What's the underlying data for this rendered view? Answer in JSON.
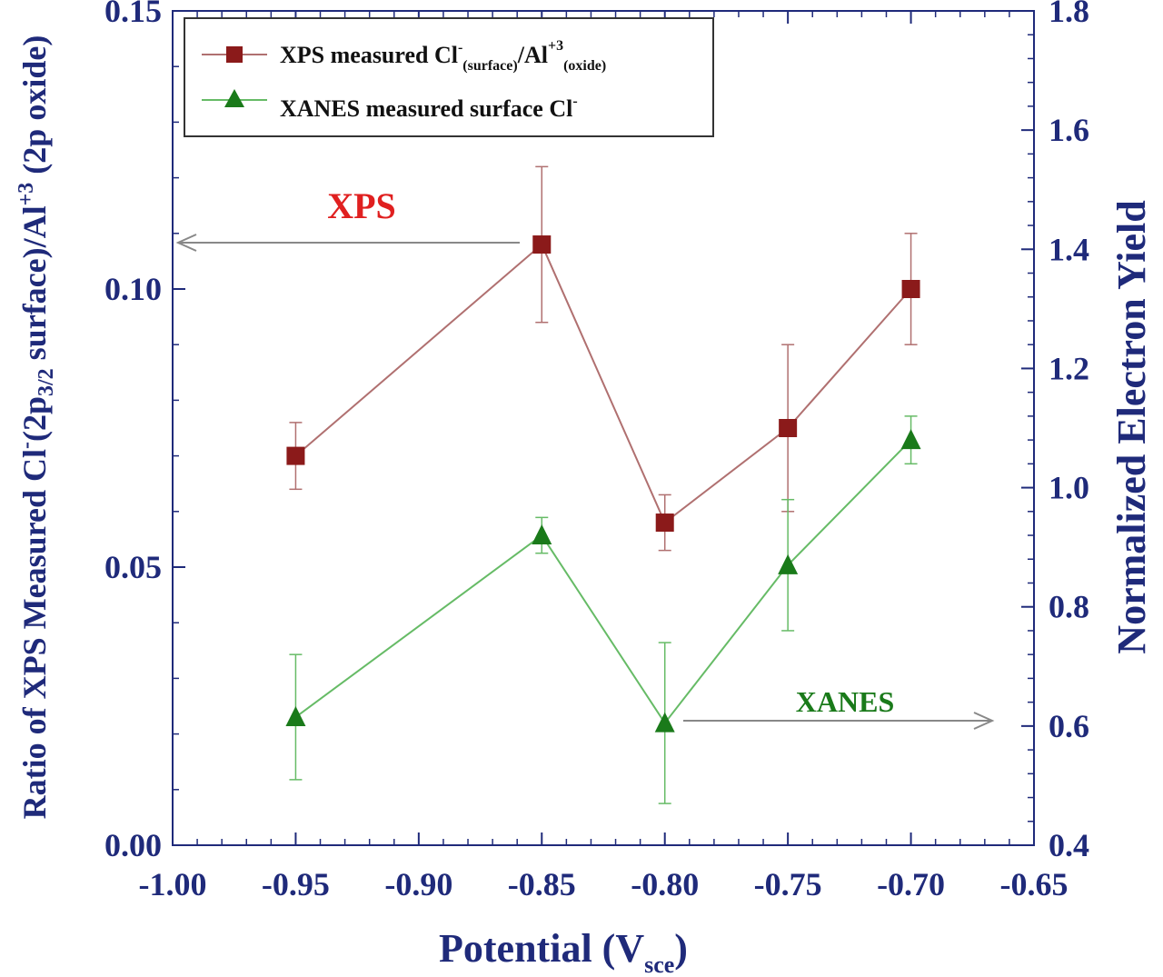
{
  "chart_data": {
    "type": "line",
    "x": [
      -0.95,
      -0.85,
      -0.8,
      -0.75,
      -0.7
    ],
    "xlim": [
      -1.0,
      -0.65
    ],
    "xticks": [
      -1.0,
      -0.95,
      -0.9,
      -0.85,
      -0.8,
      -0.75,
      -0.7,
      -0.65
    ],
    "xtick_labels": [
      "-1.00",
      "-0.95",
      "-0.90",
      "-0.85",
      "-0.80",
      "-0.75",
      "-0.70",
      "-0.65"
    ],
    "ylim_left": [
      0.0,
      0.15
    ],
    "yticks_left": [
      0.0,
      0.05,
      0.1,
      0.15
    ],
    "ytick_labels_left": [
      "0.00",
      "0.05",
      "0.10",
      "0.15"
    ],
    "ylim_right": [
      0.4,
      1.8
    ],
    "yticks_right": [
      0.4,
      0.6,
      0.8,
      1.0,
      1.2,
      1.4,
      1.6,
      1.8
    ],
    "ytick_labels_right": [
      "0.4",
      "0.6",
      "0.8",
      "1.0",
      "1.2",
      "1.4",
      "1.6",
      "1.8"
    ],
    "xlabel": {
      "main": "Potential (V",
      "sub": "sce",
      "close": ")"
    },
    "ylabel_left": {
      "p1": "Ratio of XPS Measured Cl",
      "sup1": "-",
      "p2": "(2p",
      "sub1": "3/2",
      "p3": " surface)/Al",
      "sup2": "+3",
      "p4": " (2p oxide)"
    },
    "ylabel_right": "Normalized Electron Yield",
    "series": [
      {
        "name": "XPS measured Cl-(surface)/Al+3(oxide)",
        "legend": {
          "t1": "XPS measured Cl",
          "sup1": "-",
          "sub1": "(surface)",
          "t2": "/Al",
          "sup2": "+3",
          "sub2": "(oxide)"
        },
        "axis": "left",
        "marker": "square",
        "color": "#8b1a1a",
        "line_color": "#b07070",
        "values": [
          0.07,
          0.108,
          0.058,
          0.075,
          0.1
        ],
        "err_low": [
          0.064,
          0.094,
          0.053,
          0.06,
          0.09
        ],
        "err_high": [
          0.076,
          0.122,
          0.063,
          0.09,
          0.11
        ]
      },
      {
        "name": "XANES measured surface Cl-",
        "legend": {
          "t1": "XANES measured surface Cl",
          "sup1": "-"
        },
        "axis": "right",
        "marker": "triangle",
        "color": "#1a7a1a",
        "line_color": "#66bb66",
        "values": [
          0.615,
          0.92,
          0.605,
          0.87,
          1.08
        ],
        "err_low": [
          0.51,
          0.89,
          0.47,
          0.76,
          1.04
        ],
        "err_high": [
          0.72,
          0.95,
          0.74,
          0.98,
          1.12
        ]
      }
    ],
    "annotations": [
      {
        "text": "XPS",
        "color": "#e02020",
        "points_to": "left axis"
      },
      {
        "text": "XANES",
        "color": "#1a7a1a",
        "points_to": "right axis"
      }
    ]
  }
}
